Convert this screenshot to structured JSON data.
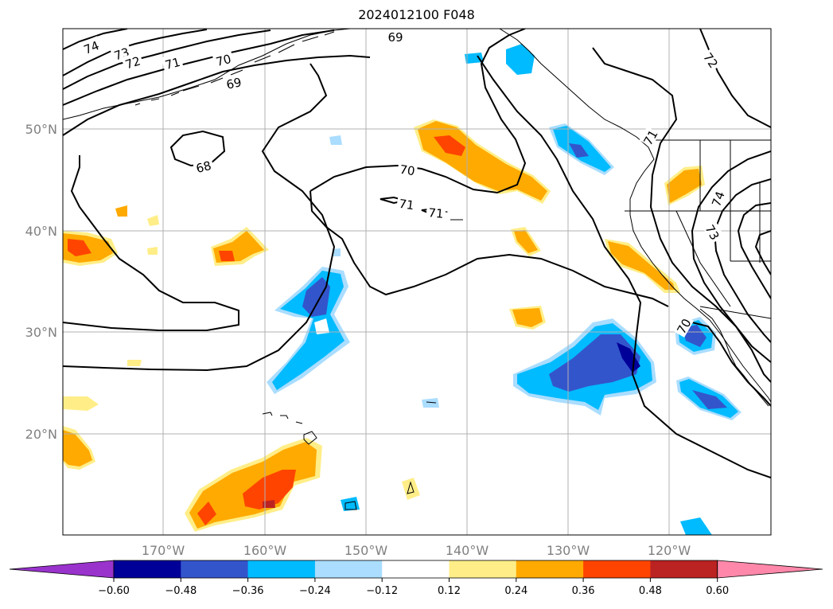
{
  "title": "2024012100 F048",
  "lat_labels": [
    "50°N",
    "40°N",
    "30°N",
    "20°N"
  ],
  "lon_labels": [
    "170°W",
    "160°W",
    "150°W",
    "140°W",
    "130°W",
    "120°W"
  ],
  "contour_labels": [
    "74",
    "73",
    "72",
    "71",
    "70",
    "69",
    "68",
    "70",
    "71",
    "71",
    "69",
    "72",
    "74",
    "73",
    "70",
    "71"
  ],
  "colorbar": {
    "ticks": [
      "−0.60",
      "−0.48",
      "−0.36",
      "−0.24",
      "−0.12",
      "0.12",
      "0.24",
      "0.36",
      "0.48",
      "0.60"
    ],
    "colors": [
      "#9933cc",
      "#000099",
      "#3355cc",
      "#00bbff",
      "#aaddff",
      "#ffffff",
      "#ffee88",
      "#ffaa00",
      "#ff4400",
      "#bb2222",
      "#ff88aa"
    ]
  },
  "colors": {
    "land_line": "#000000",
    "grid": "#b0b0b0",
    "contour": "#000000"
  }
}
